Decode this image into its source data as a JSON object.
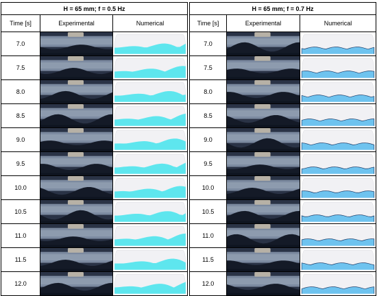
{
  "panels": [
    {
      "condition": "H = 65 mm; f = 0.5 Hz",
      "col_time": "Time [s]",
      "col_exp": "Experimental",
      "col_num": "Numerical",
      "fluid_color": "#5ee6ee"
    },
    {
      "condition": "H = 65 mm; f = 0.7 Hz",
      "col_time": "Time [s]",
      "col_exp": "Experimental",
      "col_num": "Numerical",
      "fluid_color": "#6ec3ef"
    }
  ],
  "times": [
    "7.0",
    "7.5",
    "8.0",
    "8.5",
    "9.0",
    "9.5",
    "10.0",
    "10.5",
    "11.0",
    "11.5",
    "12.0"
  ]
}
